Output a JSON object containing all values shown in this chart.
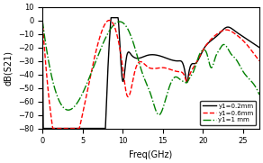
{
  "title": "",
  "xlabel": "Freq(GHz)",
  "ylabel": "dB(S21)",
  "xlim": [
    0,
    27
  ],
  "ylim": [
    -80,
    10
  ],
  "yticks": [
    10,
    0,
    -10,
    -20,
    -30,
    -40,
    -50,
    -60,
    -70,
    -80
  ],
  "xticks": [
    0,
    5,
    10,
    15,
    20,
    25
  ],
  "legend": [
    {
      "label": "y1=0.2mm",
      "color": "black",
      "linestyle": "-"
    },
    {
      "label": "y1=0.6mm",
      "color": "red",
      "linestyle": "--"
    },
    {
      "label": "y1=1 mm",
      "color": "green",
      "linestyle": "-."
    }
  ],
  "background_color": "#ffffff"
}
